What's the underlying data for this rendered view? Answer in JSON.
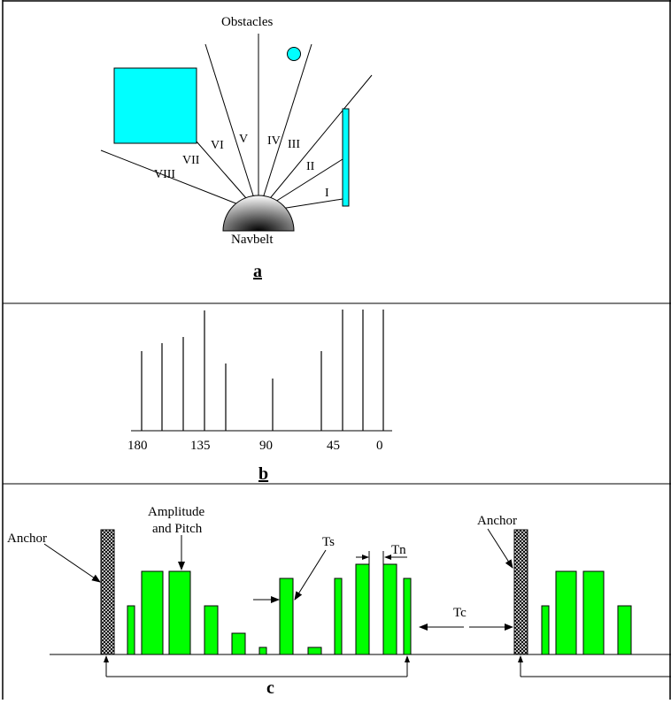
{
  "panel_a": {
    "title": "Obstacles",
    "device_label": "Navbelt",
    "caption": "a",
    "sector_labels": [
      "I",
      "II",
      "III",
      "IV",
      "V",
      "VI",
      "VII",
      "VIII"
    ],
    "colors": {
      "obstacle": "#00FFFF",
      "outline": "#000000"
    }
  },
  "panel_b": {
    "caption": "b",
    "tick_labels": [
      "180",
      "135",
      "90",
      "45",
      "0"
    ],
    "chart_data": {
      "type": "bar",
      "x": [
        180,
        170,
        160,
        135,
        127,
        90,
        45,
        20,
        0
      ],
      "xlim": [
        180,
        0
      ],
      "xticks": [
        180,
        135,
        90,
        45,
        0
      ]
    }
  },
  "panel_c": {
    "caption": "c",
    "anchor_label_left": "Anchor",
    "anchor_label_right": "Anchor",
    "amplitude_label_1": "Amplitude",
    "amplitude_label_2": "and Pitch",
    "ts_label": "Ts",
    "tn_label": "Tn",
    "tc_label": "Tc",
    "colors": {
      "pulse": "#00FF00",
      "anchor_hatch": "#000000"
    }
  }
}
